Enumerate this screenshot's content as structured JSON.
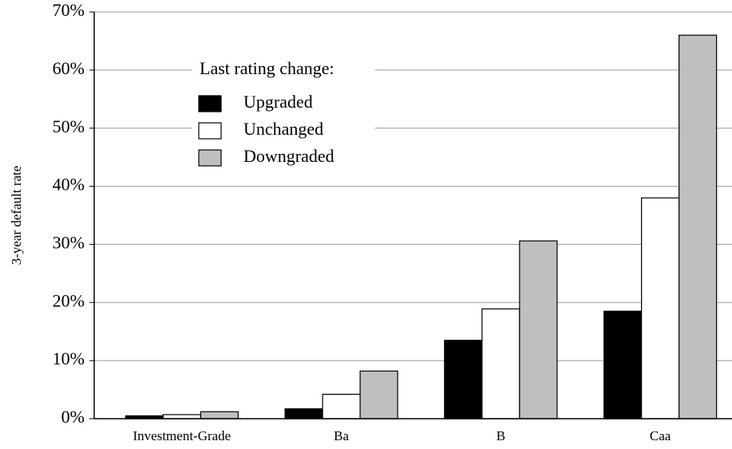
{
  "chart_data": {
    "type": "bar",
    "y_label": "3-year default rate",
    "legend_title": "Last rating change:",
    "categories": [
      "Investment-Grade",
      "Ba",
      "B",
      "Caa"
    ],
    "series": [
      {
        "name": "Upgraded",
        "color": "#000000",
        "values": [
          0.5,
          1.7,
          13.5,
          18.5
        ]
      },
      {
        "name": "Unchanged",
        "color": "#ffffff",
        "values": [
          0.7,
          4.2,
          18.9,
          38
        ]
      },
      {
        "name": "Downgraded",
        "color": "#bfbfbf",
        "values": [
          1.2,
          8.2,
          30.6,
          66
        ]
      }
    ],
    "ylim": [
      0,
      70
    ],
    "yticks": [
      {
        "value": 0,
        "label": "0%"
      },
      {
        "value": 10,
        "label": "10%"
      },
      {
        "value": 20,
        "label": "20%"
      },
      {
        "value": 30,
        "label": "30%"
      },
      {
        "value": 40,
        "label": "40%"
      },
      {
        "value": 50,
        "label": "50%"
      },
      {
        "value": 60,
        "label": "60%"
      },
      {
        "value": 70,
        "label": "70%"
      }
    ],
    "grid": true
  }
}
